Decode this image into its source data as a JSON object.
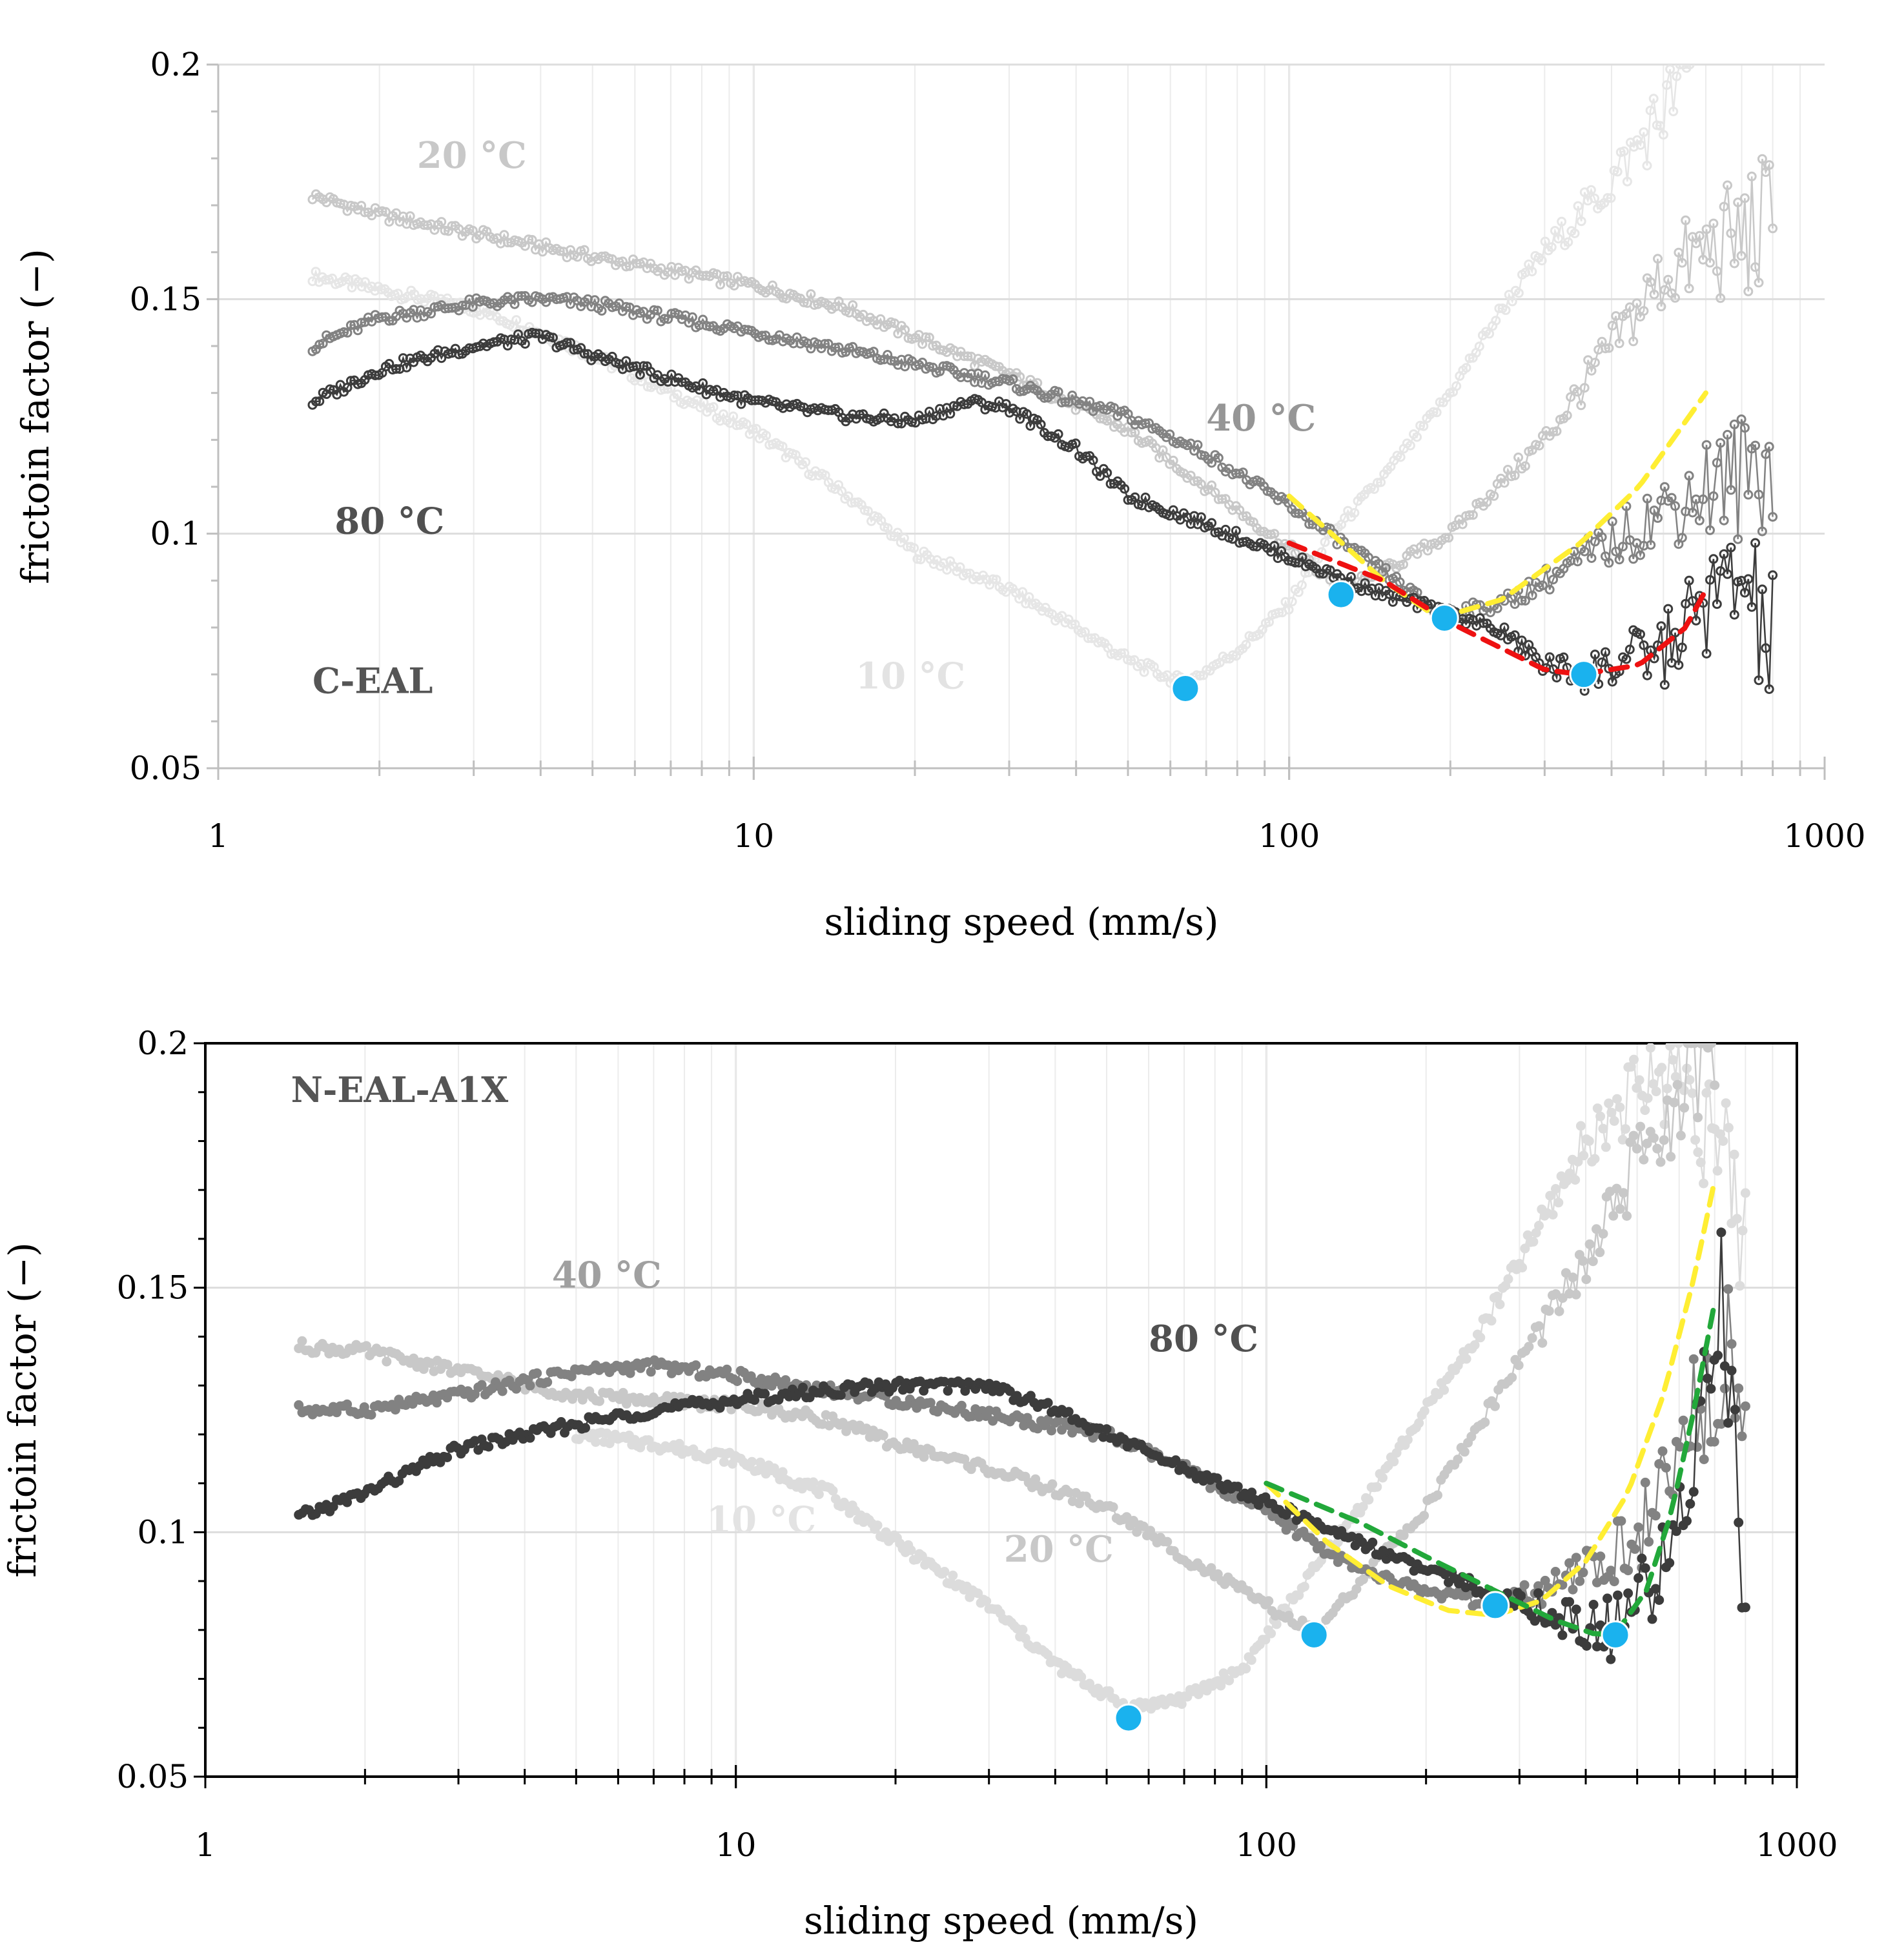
{
  "chart_data": [
    {
      "type": "scatter",
      "panel": "C-EAL",
      "title": "",
      "xlabel": "sliding speed (mm/s)",
      "ylabel": "frictoin factor (−)",
      "xscale": "log",
      "xlim": [
        1,
        1000
      ],
      "ylim": [
        0.05,
        0.2
      ],
      "xticks": [
        1,
        10,
        100,
        1000
      ],
      "xtick_labels": [
        "1",
        "10",
        "100",
        "1000"
      ],
      "yticks": [
        0.05,
        0.1,
        0.15,
        0.2
      ],
      "ytick_labels": [
        "0.05",
        "0.1",
        "0.15",
        "0.2"
      ],
      "grid": true,
      "legend": "none",
      "series": [
        {
          "name": "10 °C",
          "color": "#e6e6e6",
          "style": "line-markers",
          "x": [
            1.5,
            2,
            3,
            4,
            5,
            7,
            10,
            15,
            20,
            30,
            40,
            50,
            64,
            80,
            100,
            120,
            150,
            200,
            250,
            300,
            400,
            500,
            560
          ],
          "y": [
            0.155,
            0.152,
            0.148,
            0.143,
            0.138,
            0.13,
            0.122,
            0.108,
            0.096,
            0.088,
            0.08,
            0.073,
            0.068,
            0.075,
            0.085,
            0.1,
            0.112,
            0.13,
            0.148,
            0.16,
            0.175,
            0.19,
            0.2
          ]
        },
        {
          "name": "20 °C",
          "color": "#c8c8c8",
          "style": "line-markers",
          "x": [
            1.5,
            2,
            3,
            5,
            7,
            10,
            15,
            20,
            30,
            50,
            70,
            100,
            125,
            150,
            200,
            300,
            400,
            500,
            600,
            700,
            800
          ],
          "y": [
            0.172,
            0.168,
            0.164,
            0.159,
            0.156,
            0.153,
            0.148,
            0.142,
            0.134,
            0.122,
            0.11,
            0.097,
            0.088,
            0.092,
            0.1,
            0.12,
            0.14,
            0.155,
            0.16,
            0.163,
            0.166
          ]
        },
        {
          "name": "40 °C",
          "color": "#828282",
          "style": "line-markers",
          "x": [
            1.5,
            2,
            3,
            4,
            5,
            7,
            10,
            15,
            20,
            30,
            50,
            70,
            100,
            150,
            190,
            250,
            300,
            400,
            500,
            600,
            700,
            800
          ],
          "y": [
            0.14,
            0.146,
            0.149,
            0.15,
            0.149,
            0.146,
            0.143,
            0.139,
            0.136,
            0.132,
            0.125,
            0.117,
            0.106,
            0.092,
            0.083,
            0.085,
            0.09,
            0.098,
            0.105,
            0.11,
            0.112,
            0.118
          ]
        },
        {
          "name": "80 °C",
          "color": "#3c3c3c",
          "style": "line-markers",
          "x": [
            1.5,
            2,
            3,
            4,
            5,
            7,
            10,
            15,
            20,
            25,
            30,
            40,
            50,
            70,
            100,
            150,
            200,
            250,
            300,
            350,
            400,
            500,
            600,
            700,
            800
          ],
          "y": [
            0.128,
            0.135,
            0.14,
            0.142,
            0.138,
            0.133,
            0.128,
            0.125,
            0.124,
            0.128,
            0.127,
            0.118,
            0.108,
            0.102,
            0.095,
            0.087,
            0.083,
            0.079,
            0.072,
            0.07,
            0.072,
            0.075,
            0.085,
            0.09,
            0.075
          ]
        }
      ],
      "fit_curves": [
        {
          "name": "yellow-fit",
          "color": "#ffee33",
          "x": [
            100,
            120,
            150,
            190,
            250,
            350,
            450,
            600
          ],
          "y": [
            0.108,
            0.1,
            0.09,
            0.082,
            0.086,
            0.098,
            0.11,
            0.13
          ]
        },
        {
          "name": "red-fit",
          "color": "#ee1111",
          "x": [
            100,
            150,
            200,
            300,
            350,
            450,
            550,
            600
          ],
          "y": [
            0.098,
            0.09,
            0.081,
            0.071,
            0.07,
            0.072,
            0.08,
            0.088
          ]
        }
      ],
      "minima": {
        "color": "#1ab2ee",
        "x": [
          64,
          125,
          195,
          355
        ],
        "y": [
          0.067,
          0.087,
          0.082,
          0.07
        ]
      },
      "annotations": [
        {
          "text": "20 °C",
          "x": 2.35,
          "y": 0.178,
          "color": "#c8c8c8"
        },
        {
          "text": "40 °C",
          "x": 70,
          "y": 0.122,
          "color": "#969696"
        },
        {
          "text": "80 °C",
          "x": 1.65,
          "y": 0.1,
          "color": "#505050"
        },
        {
          "text": "10 °C",
          "x": 15.5,
          "y": 0.067,
          "color": "#e3e3e3"
        }
      ],
      "panel_label": "C-EAL"
    },
    {
      "type": "scatter",
      "panel": "N-EAL-A1X",
      "title": "",
      "xlabel": "sliding speed (mm/s)",
      "ylabel": "frictoin factor (−)",
      "xscale": "log",
      "xlim": [
        1,
        1000
      ],
      "ylim": [
        0.05,
        0.2
      ],
      "xticks": [
        1,
        10,
        100,
        1000
      ],
      "xtick_labels": [
        "1",
        "10",
        "100",
        "1000"
      ],
      "yticks": [
        0.05,
        0.1,
        0.15,
        0.2
      ],
      "ytick_labels": [
        "0.05",
        "0.1",
        "0.15",
        "0.2"
      ],
      "grid": true,
      "legend": "none",
      "series": [
        {
          "name": "10 °C",
          "color": "#dcdcdc",
          "style": "line-markers",
          "x": [
            5,
            7,
            10,
            15,
            20,
            30,
            40,
            55,
            70,
            90,
            110,
            150,
            200,
            250,
            300,
            400,
            500,
            600,
            700,
            800
          ],
          "y": [
            0.12,
            0.118,
            0.115,
            0.108,
            0.098,
            0.085,
            0.073,
            0.064,
            0.066,
            0.072,
            0.085,
            0.105,
            0.125,
            0.14,
            0.155,
            0.18,
            0.19,
            0.195,
            0.18,
            0.16
          ]
        },
        {
          "name": "20 °C",
          "color": "#c8c8c8",
          "style": "line-markers",
          "x": [
            1.5,
            2,
            3,
            5,
            7,
            10,
            15,
            20,
            30,
            50,
            70,
            100,
            125,
            150,
            200,
            300,
            400,
            500,
            600,
            700
          ],
          "y": [
            0.138,
            0.137,
            0.133,
            0.128,
            0.127,
            0.126,
            0.123,
            0.118,
            0.113,
            0.105,
            0.095,
            0.085,
            0.079,
            0.09,
            0.105,
            0.135,
            0.155,
            0.175,
            0.19,
            0.195
          ]
        },
        {
          "name": "40 °C",
          "color": "#828282",
          "style": "line-markers",
          "x": [
            1.5,
            2,
            3,
            5,
            7,
            10,
            15,
            20,
            30,
            50,
            70,
            100,
            150,
            200,
            270,
            350,
            450,
            550,
            650,
            750,
            800
          ],
          "y": [
            0.125,
            0.125,
            0.128,
            0.133,
            0.134,
            0.132,
            0.129,
            0.127,
            0.124,
            0.12,
            0.113,
            0.104,
            0.092,
            0.088,
            0.085,
            0.088,
            0.095,
            0.105,
            0.125,
            0.14,
            0.125
          ]
        },
        {
          "name": "80 °C",
          "color": "#3c3c3c",
          "style": "line-markers",
          "x": [
            1.5,
            2,
            3,
            5,
            7,
            10,
            15,
            20,
            25,
            30,
            40,
            50,
            70,
            100,
            150,
            200,
            270,
            350,
            450,
            550,
            650,
            720,
            800
          ],
          "y": [
            0.103,
            0.108,
            0.117,
            0.122,
            0.125,
            0.127,
            0.129,
            0.13,
            0.13,
            0.13,
            0.125,
            0.12,
            0.113,
            0.106,
            0.098,
            0.092,
            0.088,
            0.083,
            0.08,
            0.09,
            0.12,
            0.15,
            0.085
          ]
        }
      ],
      "fit_curves": [
        {
          "name": "yellow-fit",
          "color": "#ffee33",
          "x": [
            100,
            130,
            170,
            220,
            270,
            330,
            400,
            480,
            560,
            640,
            700
          ],
          "y": [
            0.11,
            0.098,
            0.089,
            0.084,
            0.083,
            0.086,
            0.094,
            0.108,
            0.128,
            0.152,
            0.172
          ]
        },
        {
          "name": "green-fit",
          "color": "#22a83a",
          "x": [
            100,
            150,
            200,
            270,
            350,
            420,
            460,
            520,
            580,
            640,
            700
          ],
          "y": [
            0.11,
            0.102,
            0.095,
            0.088,
            0.082,
            0.079,
            0.08,
            0.088,
            0.104,
            0.125,
            0.147
          ]
        }
      ],
      "minima": {
        "color": "#1ab2ee",
        "x": [
          55,
          123,
          270,
          455
        ],
        "y": [
          0.062,
          0.079,
          0.085,
          0.079
        ]
      },
      "annotations": [
        {
          "text": "40 °C",
          "x": 4.5,
          "y": 0.15,
          "color": "#a0a0a0"
        },
        {
          "text": "80 °C",
          "x": 60,
          "y": 0.137,
          "color": "#505050"
        },
        {
          "text": "10 °C",
          "x": 8.8,
          "y": 0.1,
          "color": "#e3e3e3"
        },
        {
          "text": "20 °C",
          "x": 32,
          "y": 0.094,
          "color": "#c8c8c8"
        }
      ],
      "panel_label": "N-EAL-A1X"
    }
  ]
}
